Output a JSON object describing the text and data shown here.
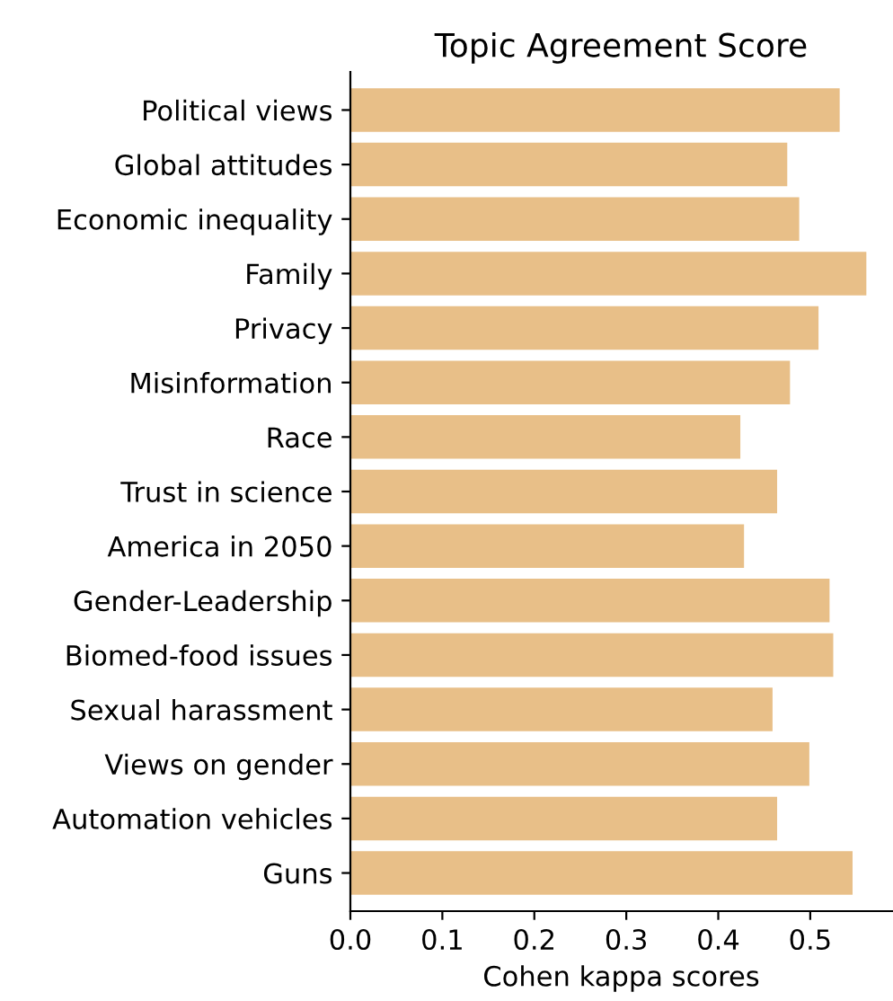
{
  "chart_data": {
    "type": "bar",
    "orientation": "horizontal",
    "title": "Topic Agreement Score",
    "xlabel": "Cohen kappa scores",
    "categories": [
      "Political views",
      "Global attitudes",
      "Economic inequality",
      "Family",
      "Privacy",
      "Misinformation",
      "Race",
      "Trust in science",
      "America in 2050",
      "Gender-Leadership",
      "Biomed-food issues",
      "Sexual harassment",
      "Views on gender",
      "Automation vehicles",
      "Guns"
    ],
    "values": [
      0.532,
      0.475,
      0.488,
      0.561,
      0.509,
      0.478,
      0.424,
      0.464,
      0.428,
      0.521,
      0.525,
      0.459,
      0.499,
      0.464,
      0.546
    ],
    "color": "#e8bf88",
    "xlim": [
      0,
      0.589
    ],
    "xticks": [
      {
        "value": 0,
        "label": "0.0"
      },
      0.1,
      0.2,
      0.3,
      0.4,
      0.5
    ],
    "grid": false
  }
}
